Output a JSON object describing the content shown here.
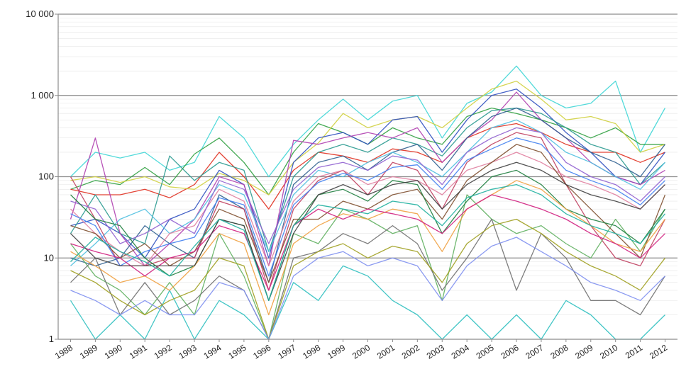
{
  "chart_data": {
    "type": "line",
    "scale": "log",
    "ylim": [
      1,
      10000
    ],
    "yticks": [
      {
        "value": 1,
        "label": "1"
      },
      {
        "value": 10,
        "label": "10"
      },
      {
        "value": 100,
        "label": "100"
      },
      {
        "value": 1000,
        "label": "1 000"
      },
      {
        "value": 10000,
        "label": "10 000"
      }
    ],
    "grid": true,
    "legend": "none",
    "x": [
      "1988",
      "1989",
      "1990",
      "1991",
      "1992",
      "1993",
      "1994",
      "1995",
      "1996",
      "1997",
      "1998",
      "1999",
      "2000",
      "2001",
      "2002",
      "2003",
      "2004",
      "2005",
      "2006",
      "2007",
      "2008",
      "2009",
      "2010",
      "2011",
      "2012"
    ],
    "series": [
      {
        "color": "#40d6d6",
        "values": [
          100,
          200,
          170,
          200,
          120,
          150,
          550,
          300,
          100,
          250,
          500,
          900,
          500,
          850,
          1000,
          300,
          800,
          1100,
          2300,
          1000,
          700,
          800,
          1500,
          200,
          700
        ]
      },
      {
        "color": "#30a040",
        "values": [
          70,
          90,
          80,
          130,
          80,
          190,
          300,
          150,
          60,
          200,
          450,
          350,
          250,
          400,
          300,
          250,
          550,
          700,
          600,
          500,
          400,
          300,
          400,
          250,
          250
        ]
      },
      {
        "color": "#e03020",
        "values": [
          70,
          60,
          60,
          70,
          55,
          80,
          200,
          100,
          40,
          120,
          200,
          180,
          150,
          220,
          200,
          150,
          300,
          400,
          450,
          350,
          250,
          200,
          200,
          150,
          200
        ]
      },
      {
        "color": "#d0d040",
        "values": [
          90,
          100,
          85,
          100,
          75,
          70,
          110,
          90,
          60,
          150,
          260,
          600,
          400,
          500,
          550,
          400,
          700,
          1200,
          1500,
          900,
          500,
          550,
          450,
          200,
          250
        ]
      },
      {
        "color": "#3050c0",
        "values": [
          25,
          30,
          20,
          10,
          30,
          40,
          120,
          80,
          10,
          150,
          300,
          350,
          250,
          500,
          550,
          200,
          500,
          1000,
          1200,
          700,
          350,
          200,
          100,
          80,
          200
        ]
      },
      {
        "color": "#2a9a90",
        "values": [
          20,
          60,
          20,
          15,
          180,
          90,
          150,
          120,
          12,
          100,
          200,
          250,
          200,
          300,
          250,
          180,
          400,
          650,
          700,
          600,
          400,
          250,
          200,
          80,
          150
        ]
      },
      {
        "color": "#b040b0",
        "values": [
          30,
          300,
          20,
          8,
          15,
          30,
          100,
          80,
          8,
          280,
          250,
          300,
          350,
          300,
          400,
          150,
          300,
          500,
          1100,
          500,
          300,
          150,
          100,
          80,
          120
        ]
      },
      {
        "color": "#306090",
        "values": [
          10,
          8,
          10,
          25,
          15,
          10,
          60,
          40,
          5,
          80,
          150,
          180,
          120,
          200,
          250,
          120,
          300,
          550,
          700,
          500,
          300,
          200,
          150,
          100,
          250
        ]
      },
      {
        "color": "#50c0e0",
        "values": [
          8,
          15,
          30,
          40,
          20,
          30,
          80,
          60,
          12,
          60,
          120,
          100,
          150,
          200,
          150,
          100,
          200,
          400,
          500,
          350,
          200,
          150,
          100,
          70,
          150
        ]
      },
      {
        "color": "#c04060",
        "values": [
          100,
          30,
          8,
          8,
          10,
          10,
          50,
          40,
          4,
          40,
          90,
          120,
          60,
          150,
          120,
          40,
          150,
          250,
          350,
          300,
          80,
          25,
          10,
          8,
          30
        ]
      },
      {
        "color": "#60b060",
        "values": [
          15,
          6,
          4,
          2,
          5,
          2,
          20,
          6,
          1,
          20,
          15,
          40,
          30,
          20,
          25,
          3,
          60,
          30,
          20,
          25,
          15,
          10,
          30,
          12,
          40
        ]
      },
      {
        "color": "#707070",
        "values": [
          5,
          10,
          2,
          5,
          2,
          3,
          6,
          4,
          1,
          10,
          12,
          20,
          15,
          25,
          15,
          4,
          10,
          30,
          4,
          20,
          10,
          3,
          3,
          2,
          6
        ]
      },
      {
        "color": "#30c0c0",
        "values": [
          3,
          1,
          2,
          1,
          4,
          1,
          3,
          2,
          1,
          5,
          3,
          8,
          6,
          3,
          2,
          1,
          2,
          1,
          2,
          1,
          3,
          2,
          1,
          1,
          2
        ]
      },
      {
        "color": "#e080a0",
        "values": [
          40,
          20,
          12,
          8,
          20,
          25,
          70,
          50,
          8,
          50,
          100,
          120,
          80,
          100,
          90,
          60,
          120,
          150,
          200,
          150,
          100,
          80,
          60,
          40,
          80
        ]
      },
      {
        "color": "#805030",
        "values": [
          25,
          20,
          10,
          15,
          8,
          12,
          40,
          30,
          5,
          30,
          30,
          50,
          40,
          60,
          70,
          30,
          90,
          150,
          250,
          200,
          80,
          40,
          20,
          10,
          60
        ]
      },
      {
        "color": "#9060d0",
        "values": [
          50,
          40,
          15,
          20,
          30,
          20,
          90,
          70,
          15,
          70,
          130,
          150,
          120,
          180,
          160,
          80,
          200,
          300,
          400,
          350,
          150,
          100,
          80,
          50,
          100
        ]
      },
      {
        "color": "#208040",
        "values": [
          60,
          30,
          25,
          10,
          6,
          8,
          30,
          25,
          3,
          25,
          60,
          70,
          50,
          90,
          80,
          20,
          50,
          100,
          120,
          80,
          40,
          30,
          25,
          15,
          40
        ]
      },
      {
        "color": "#f0a040",
        "values": [
          12,
          8,
          5,
          6,
          4,
          8,
          20,
          15,
          2,
          15,
          25,
          35,
          30,
          40,
          35,
          12,
          40,
          60,
          90,
          70,
          40,
          25,
          15,
          12,
          30
        ]
      },
      {
        "color": "#4080f0",
        "values": [
          35,
          25,
          8,
          12,
          15,
          18,
          55,
          45,
          6,
          45,
          85,
          110,
          90,
          130,
          140,
          70,
          160,
          220,
          300,
          250,
          120,
          90,
          70,
          45,
          90
        ]
      },
      {
        "color": "#a0a020",
        "values": [
          7,
          5,
          3,
          2,
          3,
          4,
          10,
          8,
          1,
          8,
          12,
          15,
          10,
          14,
          12,
          5,
          15,
          25,
          30,
          20,
          12,
          8,
          6,
          4,
          10
        ]
      },
      {
        "color": "#d02080",
        "values": [
          15,
          12,
          10,
          6,
          10,
          12,
          25,
          20,
          4,
          25,
          40,
          30,
          40,
          35,
          30,
          20,
          40,
          60,
          50,
          40,
          30,
          20,
          15,
          10,
          20
        ]
      },
      {
        "color": "#404040",
        "values": [
          20,
          10,
          8,
          8,
          8,
          8,
          30,
          25,
          3,
          20,
          60,
          80,
          60,
          80,
          90,
          40,
          80,
          120,
          150,
          120,
          80,
          60,
          50,
          40,
          80
        ]
      },
      {
        "color": "#20b0a0",
        "values": [
          9,
          18,
          12,
          9,
          6,
          14,
          30,
          22,
          3,
          25,
          45,
          40,
          35,
          50,
          45,
          25,
          55,
          70,
          80,
          60,
          35,
          25,
          20,
          15,
          35
        ]
      },
      {
        "color": "#8090f0",
        "values": [
          4,
          3,
          2,
          3,
          2,
          2,
          5,
          4,
          1,
          6,
          10,
          12,
          8,
          10,
          8,
          3,
          8,
          14,
          18,
          12,
          8,
          5,
          4,
          3,
          6
        ]
      }
    ]
  }
}
